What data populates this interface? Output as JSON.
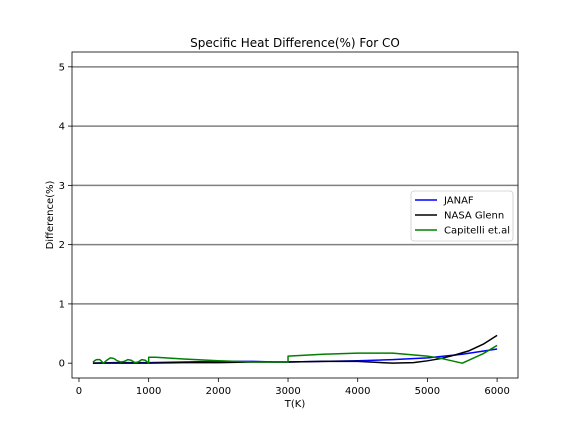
{
  "chart_data": {
    "type": "line",
    "title": "Specific Heat Difference(%) For CO",
    "xlabel": "T(K)",
    "ylabel": "Difference(%)",
    "xlim": [
      -100,
      6300
    ],
    "ylim": [
      -0.25,
      5.25
    ],
    "xticks": [
      0,
      1000,
      2000,
      3000,
      4000,
      5000,
      6000
    ],
    "yticks": [
      0,
      1,
      2,
      3,
      4,
      5
    ],
    "grid": "horizontal",
    "legend_position": "center-right",
    "series": [
      {
        "name": "JANAF",
        "color": "#0000ff",
        "points": [
          [
            200,
            0.0
          ],
          [
            500,
            0.01
          ],
          [
            1000,
            0.01
          ],
          [
            1500,
            0.02
          ],
          [
            2000,
            0.03
          ],
          [
            2500,
            0.03
          ],
          [
            2800,
            0.02
          ],
          [
            3000,
            0.02
          ],
          [
            3500,
            0.03
          ],
          [
            4000,
            0.04
          ],
          [
            4500,
            0.06
          ],
          [
            5000,
            0.09
          ],
          [
            5500,
            0.15
          ],
          [
            6000,
            0.24
          ]
        ]
      },
      {
        "name": "NASA Glenn",
        "color": "#000000",
        "points": [
          [
            200,
            0.0
          ],
          [
            500,
            0.0
          ],
          [
            1000,
            0.0
          ],
          [
            1500,
            0.01
          ],
          [
            2000,
            0.01
          ],
          [
            2500,
            0.02
          ],
          [
            3000,
            0.02
          ],
          [
            3500,
            0.03
          ],
          [
            4000,
            0.03
          ],
          [
            4500,
            0.0
          ],
          [
            4800,
            0.01
          ],
          [
            5000,
            0.04
          ],
          [
            5200,
            0.08
          ],
          [
            5400,
            0.14
          ],
          [
            5600,
            0.21
          ],
          [
            5800,
            0.32
          ],
          [
            6000,
            0.47
          ]
        ]
      },
      {
        "name": "Capitelli et.al",
        "color": "#008000",
        "points": [
          [
            200,
            0.02
          ],
          [
            250,
            0.06
          ],
          [
            300,
            0.06
          ],
          [
            350,
            0.0
          ],
          [
            400,
            0.05
          ],
          [
            450,
            0.09
          ],
          [
            500,
            0.08
          ],
          [
            550,
            0.04
          ],
          [
            600,
            0.02
          ],
          [
            650,
            0.03
          ],
          [
            700,
            0.06
          ],
          [
            750,
            0.05
          ],
          [
            800,
            0.01
          ],
          [
            850,
            0.02
          ],
          [
            900,
            0.06
          ],
          [
            950,
            0.05
          ],
          [
            1000,
            0.0
          ],
          [
            1000,
            0.1
          ],
          [
            1100,
            0.1
          ],
          [
            1500,
            0.07
          ],
          [
            2000,
            0.04
          ],
          [
            2500,
            0.02
          ],
          [
            3000,
            0.02
          ],
          [
            3000,
            0.12
          ],
          [
            3500,
            0.15
          ],
          [
            4000,
            0.17
          ],
          [
            4500,
            0.17
          ],
          [
            5000,
            0.12
          ],
          [
            5200,
            0.08
          ],
          [
            5500,
            0.0
          ],
          [
            5800,
            0.16
          ],
          [
            6000,
            0.3
          ]
        ]
      }
    ]
  }
}
